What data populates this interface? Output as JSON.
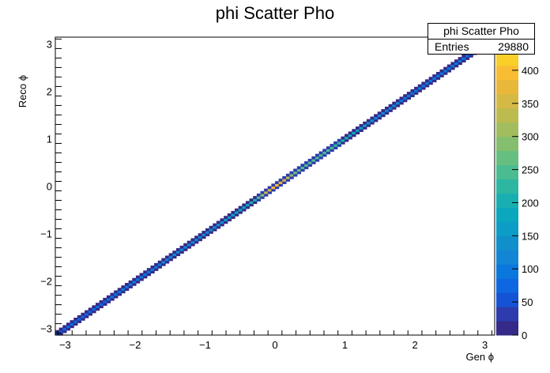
{
  "chart_data": {
    "type": "heatmap",
    "title": "phi Scatter Pho",
    "xlabel": "Gen ϕ",
    "ylabel": "Reco ϕ",
    "xlim": [
      -3.14,
      3.14
    ],
    "ylim": [
      -3.14,
      3.14
    ],
    "x_ticks": [
      "−3",
      "−2",
      "−1",
      "0",
      "1",
      "2",
      "3"
    ],
    "y_ticks": [
      "−3",
      "−2",
      "−1",
      "0",
      "1",
      "2",
      "3"
    ],
    "z_range": [
      0,
      450
    ],
    "z_ticks": [
      "0",
      "50",
      "100",
      "150",
      "200",
      "250",
      "300",
      "350",
      "400"
    ],
    "colorbar_top_label": "0",
    "palette": [
      "#352a87",
      "#2e3bac",
      "#1453d4",
      "#0f66e1",
      "#0a77dc",
      "#1285d4",
      "#108fcb",
      "#0d9cc6",
      "#0aa7bd",
      "#19afb0",
      "#2db7a3",
      "#4bbc92",
      "#66bf80",
      "#85be6e",
      "#a1bd5e",
      "#bcbb50",
      "#d5b945",
      "#e9b83a",
      "#f8bd32",
      "#f9cf28",
      "#f9e61c"
    ],
    "diagonal_counts_by_gen_phi": [
      {
        "x": -3.14,
        "count": 60
      },
      {
        "x": -2.0,
        "count": 100
      },
      {
        "x": -1.0,
        "count": 120
      },
      {
        "x": -0.3,
        "count": 200
      },
      {
        "x": 0.0,
        "count": 420
      },
      {
        "x": 0.3,
        "count": 260
      },
      {
        "x": 0.8,
        "count": 240
      },
      {
        "x": 1.5,
        "count": 110
      },
      {
        "x": 2.5,
        "count": 100
      },
      {
        "x": 3.14,
        "count": 60
      }
    ]
  },
  "stats_box": {
    "name": "phi Scatter Pho",
    "entries_label": "Entries",
    "entries_value": "29880"
  }
}
